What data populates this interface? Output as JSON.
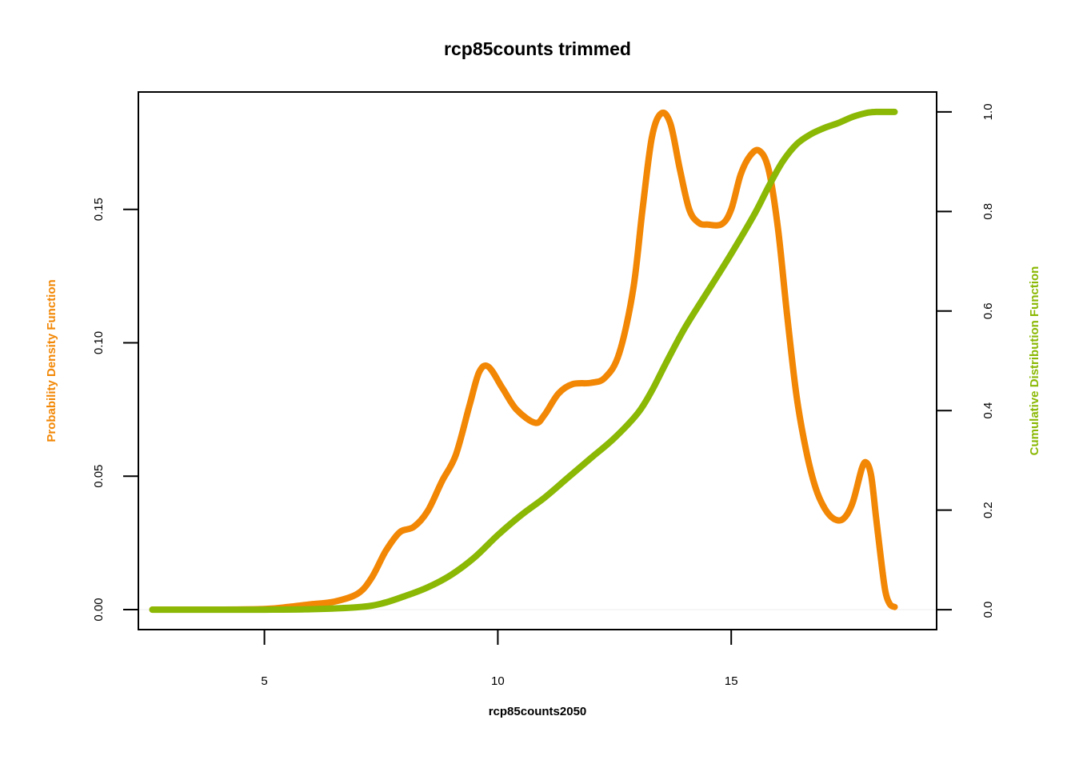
{
  "chart_data": {
    "type": "line",
    "title": "rcp85counts trimmed",
    "xlabel": "rcp85counts2050",
    "ylabel_left": "Probability Density Function",
    "ylabel_right": "Cumulative Distribution Function",
    "xlim": [
      2.3,
      19.4
    ],
    "ylim_left": [
      -0.0075,
      0.194
    ],
    "ylim_right": [
      -0.04,
      1.04
    ],
    "x_ticks": [
      5,
      10,
      15
    ],
    "x_tick_labels": [
      "5",
      "10",
      "15"
    ],
    "y_left_ticks": [
      0.0,
      0.05,
      0.1,
      0.15
    ],
    "y_left_tick_labels": [
      "0.00",
      "0.05",
      "0.10",
      "0.15"
    ],
    "y_right_ticks": [
      0.0,
      0.2,
      0.4,
      0.6,
      0.8,
      1.0
    ],
    "y_right_tick_labels": [
      "0.0",
      "0.2",
      "0.4",
      "0.6",
      "0.8",
      "1.0"
    ],
    "grid": false,
    "legend": "none",
    "colors": {
      "pdf": "#f28705",
      "cdf": "#8ab804",
      "baseline": "#eeeeee",
      "axis": "#000000"
    },
    "series": [
      {
        "axis": "left",
        "color": "#f28705",
        "x": [
          2.6,
          4.0,
          5.0,
          5.5,
          6.0,
          6.5,
          7.0,
          7.3,
          7.6,
          7.9,
          8.2,
          8.5,
          8.8,
          9.1,
          9.4,
          9.6,
          9.8,
          10.1,
          10.4,
          10.8,
          11.0,
          11.3,
          11.6,
          12.0,
          12.3,
          12.6,
          12.9,
          13.1,
          13.3,
          13.5,
          13.7,
          13.9,
          14.1,
          14.3,
          14.5,
          14.8,
          15.0,
          15.2,
          15.4,
          15.6,
          15.8,
          16.0,
          16.2,
          16.4,
          16.6,
          16.8,
          17.0,
          17.2,
          17.4,
          17.6,
          17.8,
          17.9,
          18.0,
          18.1,
          18.2,
          18.3,
          18.4,
          18.5
        ],
        "y": [
          0.0,
          0.0,
          0.0002,
          0.001,
          0.002,
          0.003,
          0.006,
          0.012,
          0.022,
          0.029,
          0.031,
          0.037,
          0.048,
          0.058,
          0.077,
          0.089,
          0.091,
          0.083,
          0.075,
          0.07,
          0.073,
          0.081,
          0.0845,
          0.085,
          0.087,
          0.096,
          0.12,
          0.15,
          0.177,
          0.186,
          0.182,
          0.165,
          0.15,
          0.145,
          0.1443,
          0.1445,
          0.15,
          0.163,
          0.17,
          0.172,
          0.165,
          0.143,
          0.11,
          0.08,
          0.06,
          0.046,
          0.038,
          0.034,
          0.034,
          0.04,
          0.053,
          0.055,
          0.05,
          0.035,
          0.02,
          0.007,
          0.002,
          0.001
        ]
      },
      {
        "axis": "right",
        "color": "#8ab804",
        "x": [
          2.6,
          4.0,
          5.0,
          6.0,
          7.0,
          7.5,
          8.0,
          8.5,
          9.0,
          9.5,
          10.0,
          10.5,
          11.0,
          11.5,
          12.0,
          12.5,
          13.0,
          13.3,
          13.6,
          14.0,
          14.5,
          15.0,
          15.5,
          15.8,
          16.1,
          16.4,
          16.7,
          17.0,
          17.3,
          17.6,
          17.9,
          18.1,
          18.3,
          18.5
        ],
        "y": [
          0.0,
          0.0,
          0.0,
          0.001,
          0.005,
          0.012,
          0.027,
          0.045,
          0.07,
          0.105,
          0.15,
          0.19,
          0.225,
          0.265,
          0.305,
          0.345,
          0.395,
          0.44,
          0.495,
          0.565,
          0.64,
          0.715,
          0.795,
          0.85,
          0.9,
          0.935,
          0.955,
          0.968,
          0.978,
          0.99,
          0.998,
          1.0,
          1.0,
          1.0
        ]
      }
    ]
  }
}
